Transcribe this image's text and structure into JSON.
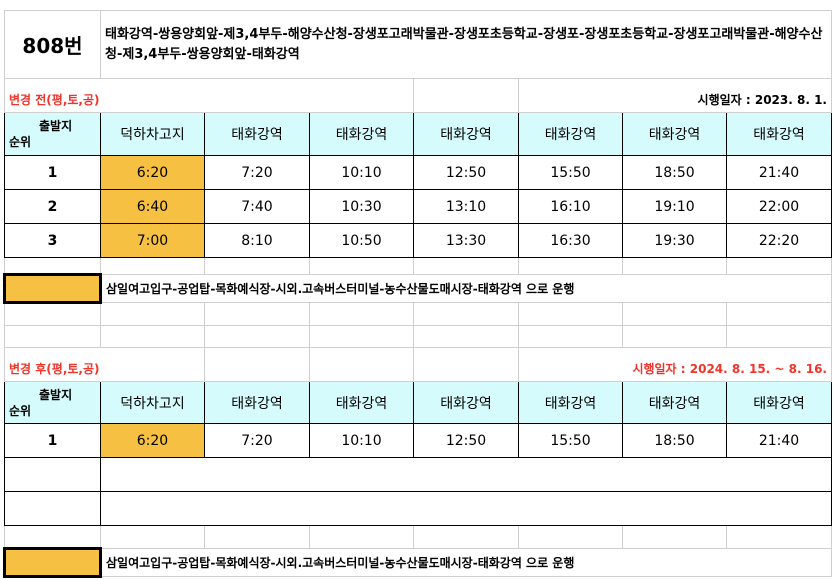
{
  "route_number": "808번",
  "route_path": "태화강역-쌍용양회앞-제3,4부두-해양수산청-장생포고래박물관-장생포초등학교-장생포-장생포초등학교-장생포고래박물관-해양수산청-제3,4부두-쌍용양회앞-태화강역",
  "colors": {
    "highlight": "#f6c142",
    "header_bg": "#d5fbfc",
    "section_label": "#f0342a"
  },
  "before": {
    "label": "변경 전(평,토,공)",
    "effective_date": "시행일자 : 2023. 8. 1.",
    "headers": [
      "출발지\n순위",
      "덕하차고지",
      "태화강역",
      "태화강역",
      "태화강역",
      "태화강역",
      "태화강역",
      "태화강역"
    ],
    "header_top": "출발지",
    "header_bottom": "순위",
    "rows": [
      [
        "1",
        "6:20",
        "7:20",
        "10:10",
        "12:50",
        "15:50",
        "18:50",
        "21:40"
      ],
      [
        "2",
        "6:40",
        "7:40",
        "10:30",
        "13:10",
        "16:10",
        "19:10",
        "22:00"
      ],
      [
        "3",
        "7:00",
        "8:10",
        "10:50",
        "13:30",
        "16:30",
        "19:30",
        "22:20"
      ]
    ],
    "legend": "삼일여고입구-공업탑-목화예식장-시외.고속버스터미널-농수산물도매시장-태화강역 으로 운행"
  },
  "after": {
    "label": "변경 후(평,토,공)",
    "effective_date": "시행일자 : 2024. 8. 15. ~ 8. 16.",
    "headers": [
      "출발지\n순위",
      "덕하차고지",
      "태화강역",
      "태화강역",
      "태화강역",
      "태화강역",
      "태화강역",
      "태화강역"
    ],
    "header_top": "출발지",
    "header_bottom": "순위",
    "rows": [
      [
        "1",
        "6:20",
        "7:20",
        "10:10",
        "12:50",
        "15:50",
        "18:50",
        "21:40"
      ]
    ],
    "legend": "삼일여고입구-공업탑-목화예식장-시외.고속버스터미널-농수산물도매시장-태화강역 으로 운행"
  }
}
